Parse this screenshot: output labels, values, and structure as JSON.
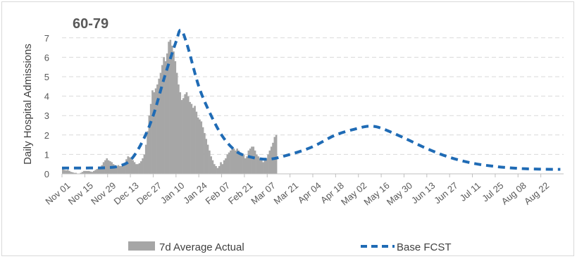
{
  "chart_data": {
    "type": "bar",
    "title": "60-79",
    "ylabel": "Daily Hospital Admissions",
    "xlabel": "",
    "ylim": [
      0,
      7.5
    ],
    "yticks": [
      0,
      1,
      2,
      3,
      4,
      5,
      6,
      7
    ],
    "xticks": [
      "Nov 01",
      "Nov 15",
      "Nov 29",
      "Dec 13",
      "Dec 27",
      "Jan 10",
      "Jan 24",
      "Feb 07",
      "Feb 21",
      "Mar 07",
      "Mar 21",
      "Apr 04",
      "Apr 18",
      "May 02",
      "May 16",
      "May 30",
      "Jun 13",
      "Jun 27",
      "Jul 11",
      "Jul 25",
      "Aug 08",
      "Aug 22"
    ],
    "grid": "horizontal dashed",
    "legend_position": "bottom",
    "series": [
      {
        "name": "7d Average Actual",
        "type": "bar",
        "color": "#a6a6a6",
        "start": "Nov 01",
        "values": [
          0.25,
          0.2,
          0.18,
          0.2,
          0.15,
          0.1,
          0.08,
          0.05,
          0.05,
          0.0,
          0.0,
          0.05,
          0.1,
          0.15,
          0.15,
          0.15,
          0.15,
          0.12,
          0.1,
          0.15,
          0.2,
          0.25,
          0.3,
          0.35,
          0.45,
          0.6,
          0.7,
          0.8,
          0.7,
          0.65,
          0.6,
          0.5,
          0.45,
          0.4,
          0.45,
          0.4,
          0.4,
          0.45,
          0.55,
          0.75,
          0.9,
          0.85,
          0.8,
          0.7,
          0.6,
          0.5,
          0.5,
          0.55,
          0.65,
          0.8,
          1.0,
          1.5,
          2.2,
          3.0,
          3.6,
          4.3,
          4.2,
          4.4,
          4.6,
          4.9,
          5.2,
          5.6,
          6.0,
          5.8,
          6.2,
          6.8,
          6.9,
          6.6,
          6.3,
          5.8,
          5.2,
          4.6,
          4.2,
          3.8,
          3.9,
          4.1,
          4.2,
          4.0,
          3.7,
          3.6,
          3.4,
          3.5,
          3.2,
          2.9,
          2.8,
          2.7,
          2.4,
          2.1,
          1.8,
          1.5,
          1.2,
          0.9,
          0.7,
          0.5,
          0.4,
          0.3,
          0.4,
          0.6,
          0.5,
          0.7,
          0.8,
          1.0,
          1.1,
          1.2,
          1.4,
          1.3,
          1.2,
          1.3,
          1.2,
          1.1,
          1.0,
          1.0,
          0.8,
          0.9,
          1.2,
          1.3,
          1.4,
          1.4,
          1.2,
          1.0,
          0.9,
          0.8,
          0.7,
          0.6,
          0.7,
          0.8,
          1.0,
          1.2,
          1.4,
          1.6,
          1.9,
          2.0
        ]
      },
      {
        "name": "Base FCST",
        "type": "line",
        "style": "dashed",
        "color": "#1f6bb5",
        "points": [
          [
            "Nov 01",
            0.3
          ],
          [
            "Nov 15",
            0.3
          ],
          [
            "Nov 29",
            0.32
          ],
          [
            "Dec 06",
            0.4
          ],
          [
            "Dec 13",
            0.7
          ],
          [
            "Dec 20",
            1.6
          ],
          [
            "Dec 27",
            3.0
          ],
          [
            "Jan 03",
            5.0
          ],
          [
            "Jan 10",
            6.8
          ],
          [
            "Jan 13",
            7.4
          ],
          [
            "Jan 17",
            6.6
          ],
          [
            "Jan 24",
            4.5
          ],
          [
            "Jan 31",
            3.1
          ],
          [
            "Feb 07",
            2.0
          ],
          [
            "Feb 14",
            1.3
          ],
          [
            "Feb 21",
            0.95
          ],
          [
            "Mar 07",
            0.75
          ],
          [
            "Mar 21",
            1.0
          ],
          [
            "Apr 04",
            1.4
          ],
          [
            "Apr 18",
            2.0
          ],
          [
            "May 02",
            2.35
          ],
          [
            "May 09",
            2.45
          ],
          [
            "May 16",
            2.35
          ],
          [
            "May 30",
            1.85
          ],
          [
            "Jun 13",
            1.3
          ],
          [
            "Jun 27",
            0.85
          ],
          [
            "Jul 11",
            0.55
          ],
          [
            "Jul 25",
            0.38
          ],
          [
            "Aug 08",
            0.28
          ],
          [
            "Aug 22",
            0.24
          ],
          [
            "Sep 03",
            0.23
          ]
        ]
      }
    ]
  }
}
